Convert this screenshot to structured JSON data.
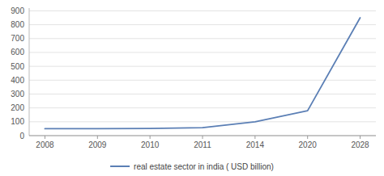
{
  "chart_data": {
    "type": "line",
    "categories": [
      "2008",
      "2009",
      "2010",
      "2011",
      "2014",
      "2020",
      "2028"
    ],
    "series": [
      {
        "name": "real estate sector in india  ( USD billion)",
        "color": "#5b7fb5",
        "values": [
          50,
          50,
          52,
          58,
          100,
          180,
          850
        ]
      }
    ],
    "ylim": [
      0,
      920
    ],
    "yticks": [
      0,
      100,
      200,
      300,
      400,
      500,
      600,
      700,
      800,
      900
    ],
    "grid": true,
    "legend": "bottom"
  }
}
